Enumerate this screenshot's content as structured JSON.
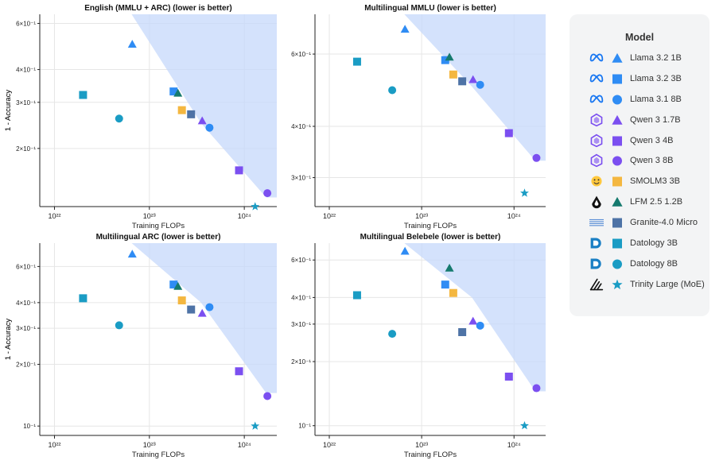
{
  "legend": {
    "title": "Model",
    "items": [
      {
        "id": "llama32_1b",
        "label": "Llama 3.2 1B",
        "color": "#2f8cf4",
        "marker": "triangle",
        "logo": "meta"
      },
      {
        "id": "llama32_3b",
        "label": "Llama 3.2 3B",
        "color": "#2f8cf4",
        "marker": "square",
        "logo": "meta"
      },
      {
        "id": "llama31_8b",
        "label": "Llama 3.1 8B",
        "color": "#2f8cf4",
        "marker": "circle",
        "logo": "meta"
      },
      {
        "id": "qwen3_17b",
        "label": "Qwen 3 1.7B",
        "color": "#7b4ff0",
        "marker": "triangle",
        "logo": "qwen"
      },
      {
        "id": "qwen3_4b",
        "label": "Qwen 3 4B",
        "color": "#7b4ff0",
        "marker": "square",
        "logo": "qwen"
      },
      {
        "id": "qwen3_8b",
        "label": "Qwen 3 8B",
        "color": "#7b4ff0",
        "marker": "circle",
        "logo": "qwen"
      },
      {
        "id": "smolm3_3b",
        "label": "SMOLM3 3B",
        "color": "#f4b740",
        "marker": "square",
        "logo": "hf"
      },
      {
        "id": "lfm25_12b",
        "label": "LFM 2.5 1.2B",
        "color": "#157a6e",
        "marker": "triangle",
        "logo": "liquid"
      },
      {
        "id": "granite40_micro",
        "label": "Granite-4.0 Micro",
        "color": "#4e73a6",
        "marker": "square",
        "logo": "ibm"
      },
      {
        "id": "datology_3b",
        "label": "Datology 3B",
        "color": "#1a9cc4",
        "marker": "square",
        "logo": "datology"
      },
      {
        "id": "datology_8b",
        "label": "Datology 8B",
        "color": "#1a9cc4",
        "marker": "circle",
        "logo": "datology"
      },
      {
        "id": "trinity_large",
        "label": "Trinity Large (MoE)",
        "color": "#1a9cc4",
        "marker": "star",
        "logo": "arcee"
      }
    ]
  },
  "chart_data": [
    {
      "type": "scatter",
      "title": "English (MMLU + ARC) (lower is better)",
      "xlabel": "Training FLOPs",
      "ylabel": "1 - Accuracy",
      "xscale": "log",
      "yscale": "log",
      "xlim": [
        7e+21,
        2.2e+24
      ],
      "ylim": [
        0.12,
        0.65
      ],
      "xticks": [
        {
          "value": 1e+22,
          "label": "10²²"
        },
        {
          "value": 1e+23,
          "label": "10²³"
        },
        {
          "value": 1e+24,
          "label": "10²⁴"
        }
      ],
      "yticks": [
        {
          "value": 0.6,
          "label": "6×10⁻¹"
        },
        {
          "value": 0.4,
          "label": "4×10⁻¹"
        },
        {
          "value": 0.3,
          "label": "3×10⁻¹"
        },
        {
          "value": 0.2,
          "label": "2×10⁻¹"
        }
      ],
      "region": [
        [
          6.5e+22,
          0.65
        ],
        [
          2.2e+24,
          0.65
        ],
        [
          2.2e+24,
          0.13
        ],
        [
          1.7e+24,
          0.13
        ],
        [
          3.5e+23,
          0.25
        ]
      ],
      "points": [
        {
          "model": "datology_3b",
          "x": 2e+22,
          "y": 0.32
        },
        {
          "model": "datology_8b",
          "x": 4.8e+22,
          "y": 0.26
        },
        {
          "model": "llama32_1b",
          "x": 6.6e+22,
          "y": 0.5
        },
        {
          "model": "llama32_3b",
          "x": 1.8e+23,
          "y": 0.33
        },
        {
          "model": "lfm25_12b",
          "x": 2e+23,
          "y": 0.325
        },
        {
          "model": "smolm3_3b",
          "x": 2.2e+23,
          "y": 0.28
        },
        {
          "model": "granite40_micro",
          "x": 2.75e+23,
          "y": 0.27
        },
        {
          "model": "qwen3_17b",
          "x": 3.6e+23,
          "y": 0.255
        },
        {
          "model": "llama31_8b",
          "x": 4.3e+23,
          "y": 0.24
        },
        {
          "model": "qwen3_4b",
          "x": 8.8e+23,
          "y": 0.165
        },
        {
          "model": "qwen3_8b",
          "x": 1.75e+24,
          "y": 0.135
        },
        {
          "model": "trinity_large",
          "x": 1.3e+24,
          "y": 0.12
        }
      ]
    },
    {
      "type": "scatter",
      "title": "Multilingual MMLU (lower is better)",
      "xlabel": "Training FLOPs",
      "ylabel": "1 - Accuracy",
      "xscale": "log",
      "yscale": "log",
      "xlim": [
        7e+21,
        2.2e+24
      ],
      "ylim": [
        0.255,
        0.75
      ],
      "xticks": [
        {
          "value": 1e+22,
          "label": "10²²"
        },
        {
          "value": 1e+23,
          "label": "10²³"
        },
        {
          "value": 1e+24,
          "label": "10²⁴"
        }
      ],
      "yticks": [
        {
          "value": 0.6,
          "label": "6×10⁻¹"
        },
        {
          "value": 0.4,
          "label": "4×10⁻¹"
        },
        {
          "value": 0.3,
          "label": "3×10⁻¹"
        }
      ],
      "region": [
        [
          6.5e+22,
          0.75
        ],
        [
          2.2e+24,
          0.75
        ],
        [
          2.2e+24,
          0.33
        ],
        [
          1.7e+24,
          0.33
        ],
        [
          3.5e+23,
          0.5
        ]
      ],
      "points": [
        {
          "model": "datology_3b",
          "x": 2e+22,
          "y": 0.575
        },
        {
          "model": "datology_8b",
          "x": 4.8e+22,
          "y": 0.49
        },
        {
          "model": "llama32_1b",
          "x": 6.6e+22,
          "y": 0.69
        },
        {
          "model": "llama32_3b",
          "x": 1.8e+23,
          "y": 0.58
        },
        {
          "model": "lfm25_12b",
          "x": 2e+23,
          "y": 0.59
        },
        {
          "model": "smolm3_3b",
          "x": 2.2e+23,
          "y": 0.535
        },
        {
          "model": "granite40_micro",
          "x": 2.75e+23,
          "y": 0.515
        },
        {
          "model": "qwen3_17b",
          "x": 3.6e+23,
          "y": 0.52
        },
        {
          "model": "llama31_8b",
          "x": 4.3e+23,
          "y": 0.505
        },
        {
          "model": "qwen3_4b",
          "x": 8.8e+23,
          "y": 0.385
        },
        {
          "model": "qwen3_8b",
          "x": 1.75e+24,
          "y": 0.335
        },
        {
          "model": "trinity_large",
          "x": 1.3e+24,
          "y": 0.275
        }
      ]
    },
    {
      "type": "scatter",
      "title": "Multilingual ARC (lower is better)",
      "xlabel": "Training FLOPs",
      "ylabel": "1 - Accuracy",
      "xscale": "log",
      "yscale": "log",
      "xlim": [
        7e+21,
        2.2e+24
      ],
      "ylim": [
        0.09,
        0.78
      ],
      "xticks": [
        {
          "value": 1e+22,
          "label": "10²²"
        },
        {
          "value": 1e+23,
          "label": "10²³"
        },
        {
          "value": 1e+24,
          "label": "10²⁴"
        }
      ],
      "yticks": [
        {
          "value": 0.6,
          "label": "6×10⁻¹"
        },
        {
          "value": 0.4,
          "label": "4×10⁻¹"
        },
        {
          "value": 0.3,
          "label": "3×10⁻¹"
        },
        {
          "value": 0.2,
          "label": "2×10⁻¹"
        },
        {
          "value": 0.1,
          "label": "10⁻¹"
        }
      ],
      "region": [
        [
          6.5e+22,
          0.78
        ],
        [
          2.2e+24,
          0.78
        ],
        [
          2.2e+24,
          0.145
        ],
        [
          1.7e+24,
          0.145
        ],
        [
          3.5e+23,
          0.4
        ]
      ],
      "points": [
        {
          "model": "datology_3b",
          "x": 2e+22,
          "y": 0.42
        },
        {
          "model": "datology_8b",
          "x": 4.8e+22,
          "y": 0.31
        },
        {
          "model": "llama32_1b",
          "x": 6.6e+22,
          "y": 0.69
        },
        {
          "model": "llama32_3b",
          "x": 1.8e+23,
          "y": 0.49
        },
        {
          "model": "lfm25_12b",
          "x": 2e+23,
          "y": 0.48
        },
        {
          "model": "smolm3_3b",
          "x": 2.2e+23,
          "y": 0.41
        },
        {
          "model": "granite40_micro",
          "x": 2.75e+23,
          "y": 0.37
        },
        {
          "model": "qwen3_17b",
          "x": 3.6e+23,
          "y": 0.355
        },
        {
          "model": "llama31_8b",
          "x": 4.3e+23,
          "y": 0.38
        },
        {
          "model": "qwen3_4b",
          "x": 8.8e+23,
          "y": 0.185
        },
        {
          "model": "qwen3_8b",
          "x": 1.75e+24,
          "y": 0.14
        },
        {
          "model": "trinity_large",
          "x": 1.3e+24,
          "y": 0.1
        }
      ]
    },
    {
      "type": "scatter",
      "title": "Multilingual Belebele (lower is better)",
      "xlabel": "Training FLOPs",
      "ylabel": "1 - Accuracy",
      "xscale": "log",
      "yscale": "log",
      "xlim": [
        7e+21,
        2.2e+24
      ],
      "ylim": [
        0.09,
        0.72
      ],
      "xticks": [
        {
          "value": 1e+22,
          "label": "10²²"
        },
        {
          "value": 1e+23,
          "label": "10²³"
        },
        {
          "value": 1e+24,
          "label": "10²⁴"
        }
      ],
      "yticks": [
        {
          "value": 0.6,
          "label": "6×10⁻¹"
        },
        {
          "value": 0.4,
          "label": "4×10⁻¹"
        },
        {
          "value": 0.3,
          "label": "3×10⁻¹"
        },
        {
          "value": 0.2,
          "label": "2×10⁻¹"
        },
        {
          "value": 0.1,
          "label": "10⁻¹"
        }
      ],
      "region": [
        [
          6.5e+22,
          0.72
        ],
        [
          2.2e+24,
          0.72
        ],
        [
          2.2e+24,
          0.145
        ],
        [
          1.7e+24,
          0.145
        ],
        [
          3.5e+23,
          0.4
        ]
      ],
      "points": [
        {
          "model": "datology_3b",
          "x": 2e+22,
          "y": 0.41
        },
        {
          "model": "datology_8b",
          "x": 4.8e+22,
          "y": 0.27
        },
        {
          "model": "llama32_1b",
          "x": 6.6e+22,
          "y": 0.66
        },
        {
          "model": "llama32_3b",
          "x": 1.8e+23,
          "y": 0.46
        },
        {
          "model": "lfm25_12b",
          "x": 2e+23,
          "y": 0.55
        },
        {
          "model": "smolm3_3b",
          "x": 2.2e+23,
          "y": 0.42
        },
        {
          "model": "granite40_micro",
          "x": 2.75e+23,
          "y": 0.275
        },
        {
          "model": "qwen3_17b",
          "x": 3.6e+23,
          "y": 0.31
        },
        {
          "model": "llama31_8b",
          "x": 4.3e+23,
          "y": 0.295
        },
        {
          "model": "qwen3_4b",
          "x": 8.8e+23,
          "y": 0.17
        },
        {
          "model": "qwen3_8b",
          "x": 1.75e+24,
          "y": 0.15
        },
        {
          "model": "trinity_large",
          "x": 1.3e+24,
          "y": 0.1
        }
      ]
    }
  ]
}
